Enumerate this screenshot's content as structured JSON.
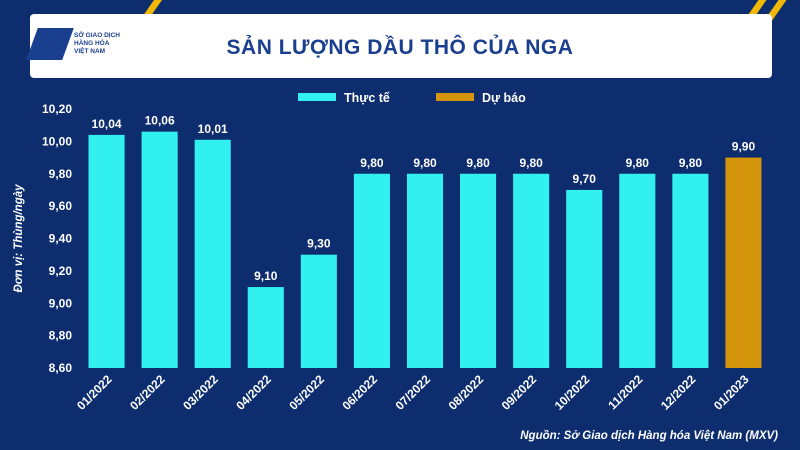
{
  "header": {
    "logo_text": "SỞ GIAO DỊCH\nHÀNG HÓA\nVIỆT NAM",
    "title": "SẢN LƯỢNG DẦU THÔ CỦA NGA"
  },
  "source": "Nguồn: Sở Giao dịch Hàng hóa Việt Nam (MXV)",
  "colors": {
    "background": "#0d2d6e",
    "actual": "#33f0f0",
    "forecast": "#d4940c",
    "accent": "#f2b705"
  },
  "chart_data": {
    "type": "bar",
    "title": "SẢN LƯỢNG DẦU THÔ CỦA NGA",
    "ylabel": "Đơn vị: Thùng/ngày",
    "categories": [
      "01/2022",
      "02/2022",
      "03/2022",
      "04/2022",
      "05/2022",
      "06/2022",
      "07/2022",
      "08/2022",
      "09/2022",
      "10/2022",
      "11/2022",
      "12/2022",
      "01/2023"
    ],
    "values": [
      10.04,
      10.06,
      10.01,
      9.1,
      9.3,
      9.8,
      9.8,
      9.8,
      9.8,
      9.7,
      9.8,
      9.8,
      9.9
    ],
    "value_labels": [
      "10,04",
      "10,06",
      "10,01",
      "9,10",
      "9,30",
      "9,80",
      "9,80",
      "9,80",
      "9,80",
      "9,70",
      "9,80",
      "9,80",
      "9,90"
    ],
    "series_type": [
      "actual",
      "actual",
      "actual",
      "actual",
      "actual",
      "actual",
      "actual",
      "actual",
      "actual",
      "actual",
      "actual",
      "actual",
      "forecast"
    ],
    "legend": [
      {
        "key": "actual",
        "name": "Thực tế"
      },
      {
        "key": "forecast",
        "name": "Dự báo"
      }
    ],
    "legend_position": "top-center",
    "ylim": [
      8.6,
      10.2
    ],
    "yticks": [
      "8,60",
      "8,80",
      "9,00",
      "9,20",
      "9,40",
      "9,60",
      "9,80",
      "10,00",
      "10,20"
    ],
    "grid": false
  }
}
